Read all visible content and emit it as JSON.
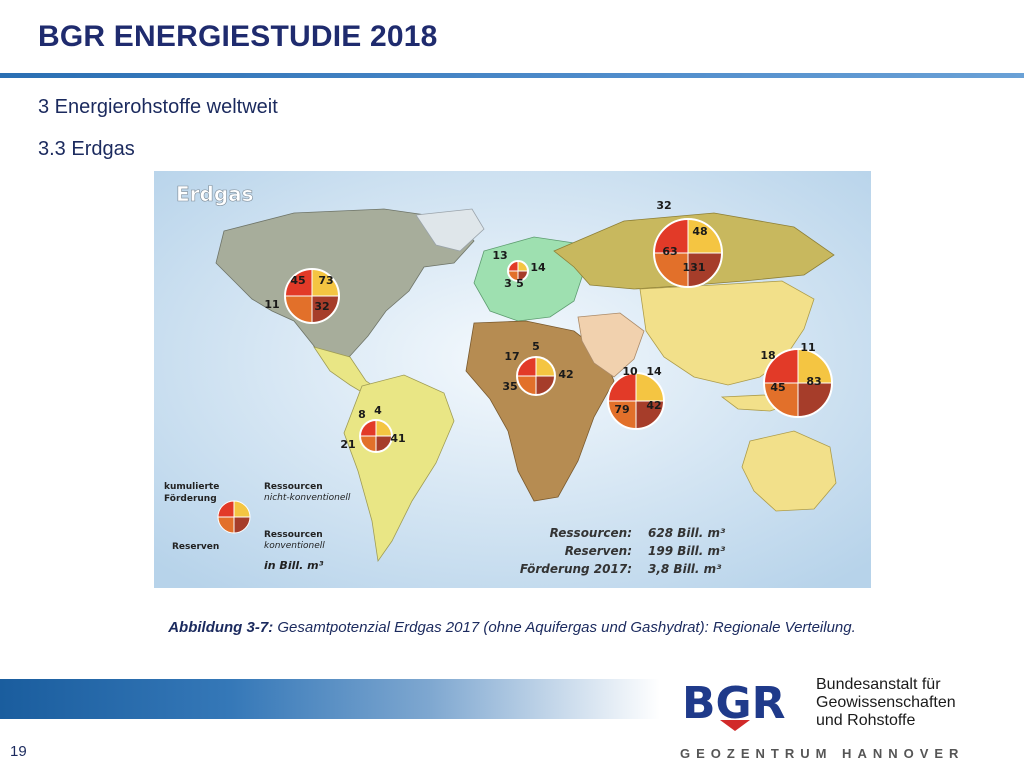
{
  "header": {
    "title": "BGR ENERGIESTUDIE 2018",
    "section": "3 Energierohstoffe weltweit",
    "subsection": "3.3 Erdgas"
  },
  "map": {
    "title": "Erdgas",
    "colors": {
      "kumulierte_foerderung": "#e23a28",
      "ressourcen_nicht_konventionell": "#f4c542",
      "ressourcen_konventionell": "#a63d2a",
      "reserven": "#e2702a"
    },
    "regions": [
      {
        "name": "Nordamerika",
        "values": [
          "45",
          "73",
          "32",
          "11"
        ]
      },
      {
        "name": "Europa",
        "values": [
          "13",
          "14",
          "3",
          "5"
        ]
      },
      {
        "name": "GUS",
        "values": [
          "32",
          "48",
          "63",
          "131"
        ]
      },
      {
        "name": "Afrika",
        "values": [
          "17",
          "5",
          "35",
          "42"
        ]
      },
      {
        "name": "Naher Osten",
        "values": [
          "10",
          "14",
          "79",
          "42"
        ]
      },
      {
        "name": "Austral-Asien",
        "values": [
          "18",
          "11",
          "45",
          "83"
        ]
      },
      {
        "name": "Lateinamerika",
        "values": [
          "8",
          "4",
          "21",
          "41"
        ]
      }
    ],
    "legend": {
      "kumulierte": "kumulierte",
      "foerderung": "Förderung",
      "reserven": "Reserven",
      "ressourcen1": "Ressourcen",
      "nicht_konv": "nicht-konventionell",
      "ressourcen2": "Ressourcen",
      "konv": "konventionell",
      "unit": "in Bill. m³"
    },
    "totals": [
      {
        "label": "Ressourcen:",
        "value": "628 Bill. m³"
      },
      {
        "label": "Reserven:",
        "value": "199 Bill. m³"
      },
      {
        "label": "Förderung 2017:",
        "value": "3,8 Bill. m³"
      }
    ]
  },
  "caption": {
    "bold": "Abbildung 3-7:",
    "text": " Gesamtpotenzial Erdgas 2017 (ohne Aquifergas und Gashydrat): Regionale Verteilung."
  },
  "footer": {
    "page": "19",
    "logo": "BGR",
    "org_line1": "Bundesanstalt für",
    "org_line2": "Geowissenschaften",
    "org_line3": "und Rohstoffe",
    "geozentrum": "GEOZENTRUM HANNOVER"
  }
}
